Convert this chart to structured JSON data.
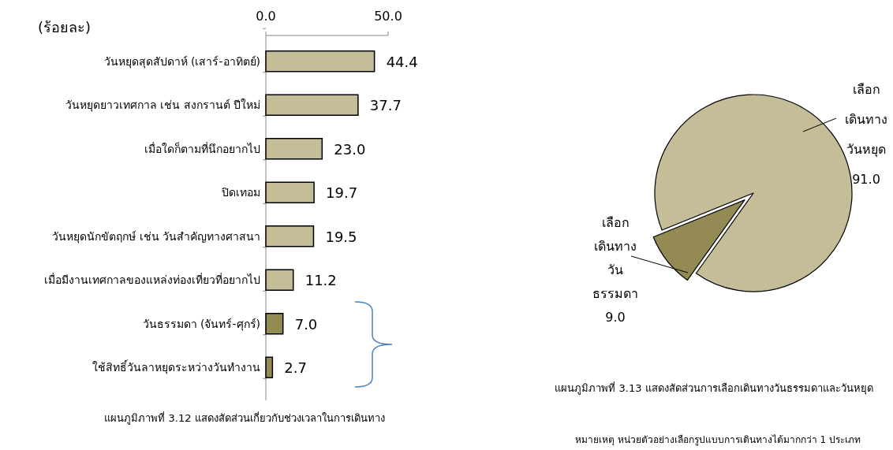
{
  "chart_data": [
    {
      "type": "bar",
      "orientation": "horizontal",
      "xlabel": "(ร้อยละ)",
      "categories": [
        "วันหยุดสุดสัปดาห์ (เสาร์-อาทิตย์)",
        "วันหยุดยาวเทศกาล เช่น สงกรานต์ ปีใหม่",
        "เมื่อใดก็ตามที่นึกอยากไป",
        "ปิดเทอม",
        "วันหยุดนักขัตฤกษ์ เช่น วันสำคัญทางศาสนา",
        "เมื่อมีงานเทศกาลของแหล่งท่องเที่ยวที่อยากไป",
        "วันธรรมดา (จันทร์-ศุกร์)",
        "ใช้สิทธิ์วันลาหยุดระหว่างวันทำงาน"
      ],
      "values": [
        44.4,
        37.7,
        23.0,
        19.7,
        19.5,
        11.2,
        7.0,
        2.7
      ],
      "value_labels": [
        "44.4",
        "37.7",
        "23.0",
        "19.7",
        "19.5",
        "11.2",
        "7.0",
        "2.7"
      ],
      "colors": [
        "#c4bd97",
        "#c4bd97",
        "#c4bd97",
        "#c4bd97",
        "#c4bd97",
        "#c4bd97",
        "#948a54",
        "#948a54"
      ],
      "xlim": [
        0,
        50
      ],
      "xticks": [
        {
          "value": 0,
          "label": "0.0"
        },
        {
          "value": 50,
          "label": "50.0"
        }
      ],
      "annotations": [
        "แผนภูมิภาพที่ 3.12 แสดงสัดส่วนเกี่ยวกับช่วงเวลาในการเดินทาง"
      ]
    },
    {
      "type": "pie",
      "categories": [
        "เลือกเดินทางวันหยุด",
        "เลือกเดินทางวันธรรมดา"
      ],
      "values": [
        91.0,
        9.0
      ],
      "value_labels": [
        "91.0",
        "9.0"
      ],
      "colors": [
        "#c4bd97",
        "#948a54"
      ],
      "annotations": [
        "แผนภูมิภาพที่  3.13 แสดงสัดส่วนการเลือกเดินทางวันธรรมดาและวันหยุด",
        "หมายเหตุ หน่วยตัวอย่างเลือกรูปแบบการเดินทางได้มากกว่า 1 ประเภท"
      ]
    }
  ]
}
